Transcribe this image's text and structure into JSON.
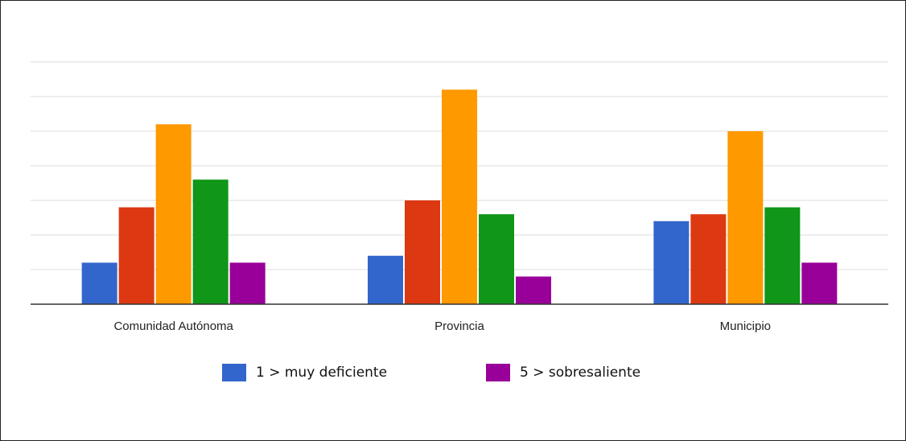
{
  "chart_data": {
    "type": "bar",
    "title": "",
    "xlabel": "",
    "ylabel": "",
    "grid": true,
    "ylim": [
      0,
      35
    ],
    "categories": [
      "Comunidad Autónoma",
      "Provincia",
      "Municipio"
    ],
    "series": [
      {
        "name": "1 > muy deficiente",
        "color": "#3366cc",
        "values": [
          6,
          7,
          12
        ]
      },
      {
        "color": "#dc3912",
        "values": [
          14,
          15,
          13
        ]
      },
      {
        "color": "#ff9900",
        "values": [
          26,
          31,
          25
        ]
      },
      {
        "color": "#109618",
        "values": [
          18,
          13,
          14
        ]
      },
      {
        "name": "5 > sobresaliente",
        "color": "#990099",
        "values": [
          6,
          4,
          6
        ]
      }
    ],
    "legend": {
      "placement": "bottom",
      "entries": [
        {
          "label": "1 > muy deficiente",
          "color": "#3366cc"
        },
        {
          "label": "5 > sobresaliente",
          "color": "#990099"
        }
      ]
    }
  }
}
